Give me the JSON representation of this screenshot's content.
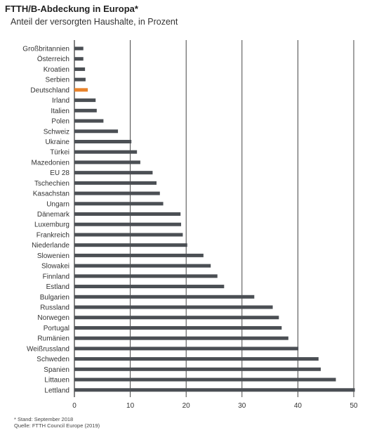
{
  "title": "FTTH/B-Abdeckung in Europa*",
  "subtitle": "Anteil der versorgten Haushalte, in Prozent",
  "footnotes": {
    "stand": "* Stand: September 2018",
    "quelle": "Quelle: FTTH Council Europe (2019)"
  },
  "colors": {
    "bar": "#4b4f54",
    "highlight": "#e8822a",
    "grid": "#333333"
  },
  "chart_data": {
    "type": "bar",
    "orientation": "horizontal",
    "xlim": [
      0,
      50
    ],
    "xticks": [
      0,
      10,
      20,
      30,
      40,
      50
    ],
    "grid": true,
    "highlight_category": "Deutschland",
    "categories": [
      "Großbritannien",
      "Österreich",
      "Kroatien",
      "Serbien",
      "Deutschland",
      "Irland",
      "Italien",
      "Polen",
      "Schweiz",
      "Ukraine",
      "Türkei",
      "Mazedonien",
      "EU 28",
      "Tschechien",
      "Kasachstan",
      "Ungarn",
      "Dänemark",
      "Luxemburg",
      "Frankreich",
      "Niederlande",
      "Slowenien",
      "Slowakei",
      "Finnland",
      "Estland",
      "Bulgarien",
      "Russland",
      "Norwegen",
      "Portugal",
      "Rumänien",
      "Weißrussland",
      "Schweden",
      "Spanien",
      "Littauen",
      "Lettland"
    ],
    "values": [
      1.6,
      1.6,
      1.9,
      2.0,
      2.4,
      3.8,
      4.0,
      5.2,
      7.8,
      10.2,
      11.2,
      11.8,
      14.0,
      14.7,
      15.3,
      15.9,
      19.0,
      19.1,
      19.4,
      20.2,
      23.1,
      24.4,
      25.6,
      26.8,
      32.2,
      35.5,
      36.6,
      37.1,
      38.3,
      40.1,
      43.7,
      44.1,
      46.8,
      50.2
    ]
  }
}
